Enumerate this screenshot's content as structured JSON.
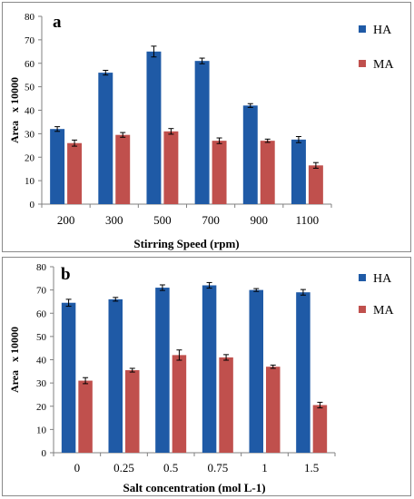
{
  "chart_data": [
    {
      "type": "bar",
      "panel_label": "a",
      "categories": [
        "200",
        "300",
        "500",
        "700",
        "900",
        "1100"
      ],
      "series": [
        {
          "name": "HA",
          "color": "#1f5aa6",
          "values": [
            32,
            56,
            65,
            61,
            42,
            27.5
          ],
          "errors": [
            1,
            1,
            2.3,
            1.2,
            0.8,
            1.3
          ]
        },
        {
          "name": "MA",
          "color": "#c0504d",
          "values": [
            26,
            29.5,
            31,
            27,
            27,
            16.5
          ],
          "errors": [
            1.3,
            1,
            1.2,
            1.2,
            0.7,
            1.2
          ]
        }
      ],
      "xlabel": "Stirring Speed (rpm)",
      "ylabel": "Area   x 10000",
      "ylim": [
        0,
        80
      ],
      "yticks": [
        "0",
        "10",
        "20",
        "30",
        "40",
        "50",
        "60",
        "70",
        "80"
      ],
      "grid": false,
      "legend": "right"
    },
    {
      "type": "bar",
      "panel_label": "b",
      "categories": [
        "0",
        "0.25",
        "0.5",
        "0.75",
        "1",
        "1.5"
      ],
      "series": [
        {
          "name": "HA",
          "color": "#1f5aa6",
          "values": [
            64.5,
            66,
            71,
            72,
            70,
            69
          ],
          "errors": [
            1.5,
            0.8,
            1.2,
            1.2,
            0.6,
            1.2
          ]
        },
        {
          "name": "MA",
          "color": "#c0504d",
          "values": [
            31,
            35.5,
            42,
            41,
            37,
            20.5
          ],
          "errors": [
            1.3,
            0.8,
            2.2,
            1.2,
            0.7,
            1.2
          ]
        }
      ],
      "xlabel": "Salt concentration (mol L-1)",
      "ylabel": "Area   x 10000",
      "ylim": [
        0,
        80
      ],
      "yticks": [
        "0",
        "10",
        "20",
        "30",
        "40",
        "50",
        "60",
        "70",
        "80"
      ],
      "grid": false,
      "legend": "right"
    }
  ]
}
